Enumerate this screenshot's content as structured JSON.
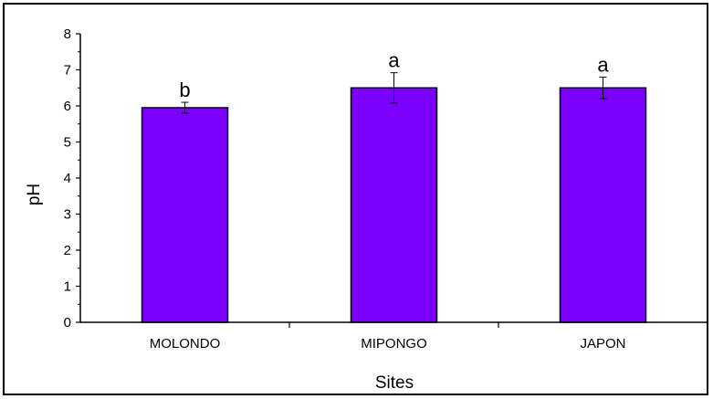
{
  "chart_data": {
    "type": "bar",
    "title": "",
    "xlabel": "Sites",
    "ylabel": "pH",
    "ylim": [
      0,
      8
    ],
    "yticks": [
      "0",
      "1",
      "2",
      "3",
      "4",
      "5",
      "6",
      "7",
      "8"
    ],
    "categories": [
      "MOLONDO",
      "MIPONGO",
      "JAPON"
    ],
    "values": [
      5.95,
      6.5,
      6.5
    ],
    "errors": [
      0.15,
      0.42,
      0.3
    ],
    "significance_letters": [
      "b",
      "a",
      "a"
    ],
    "grid": false,
    "legend": "none",
    "colors": {
      "bar_fill": "#7a00ff",
      "bar_stroke": "#000000",
      "axis": "#000000"
    }
  }
}
